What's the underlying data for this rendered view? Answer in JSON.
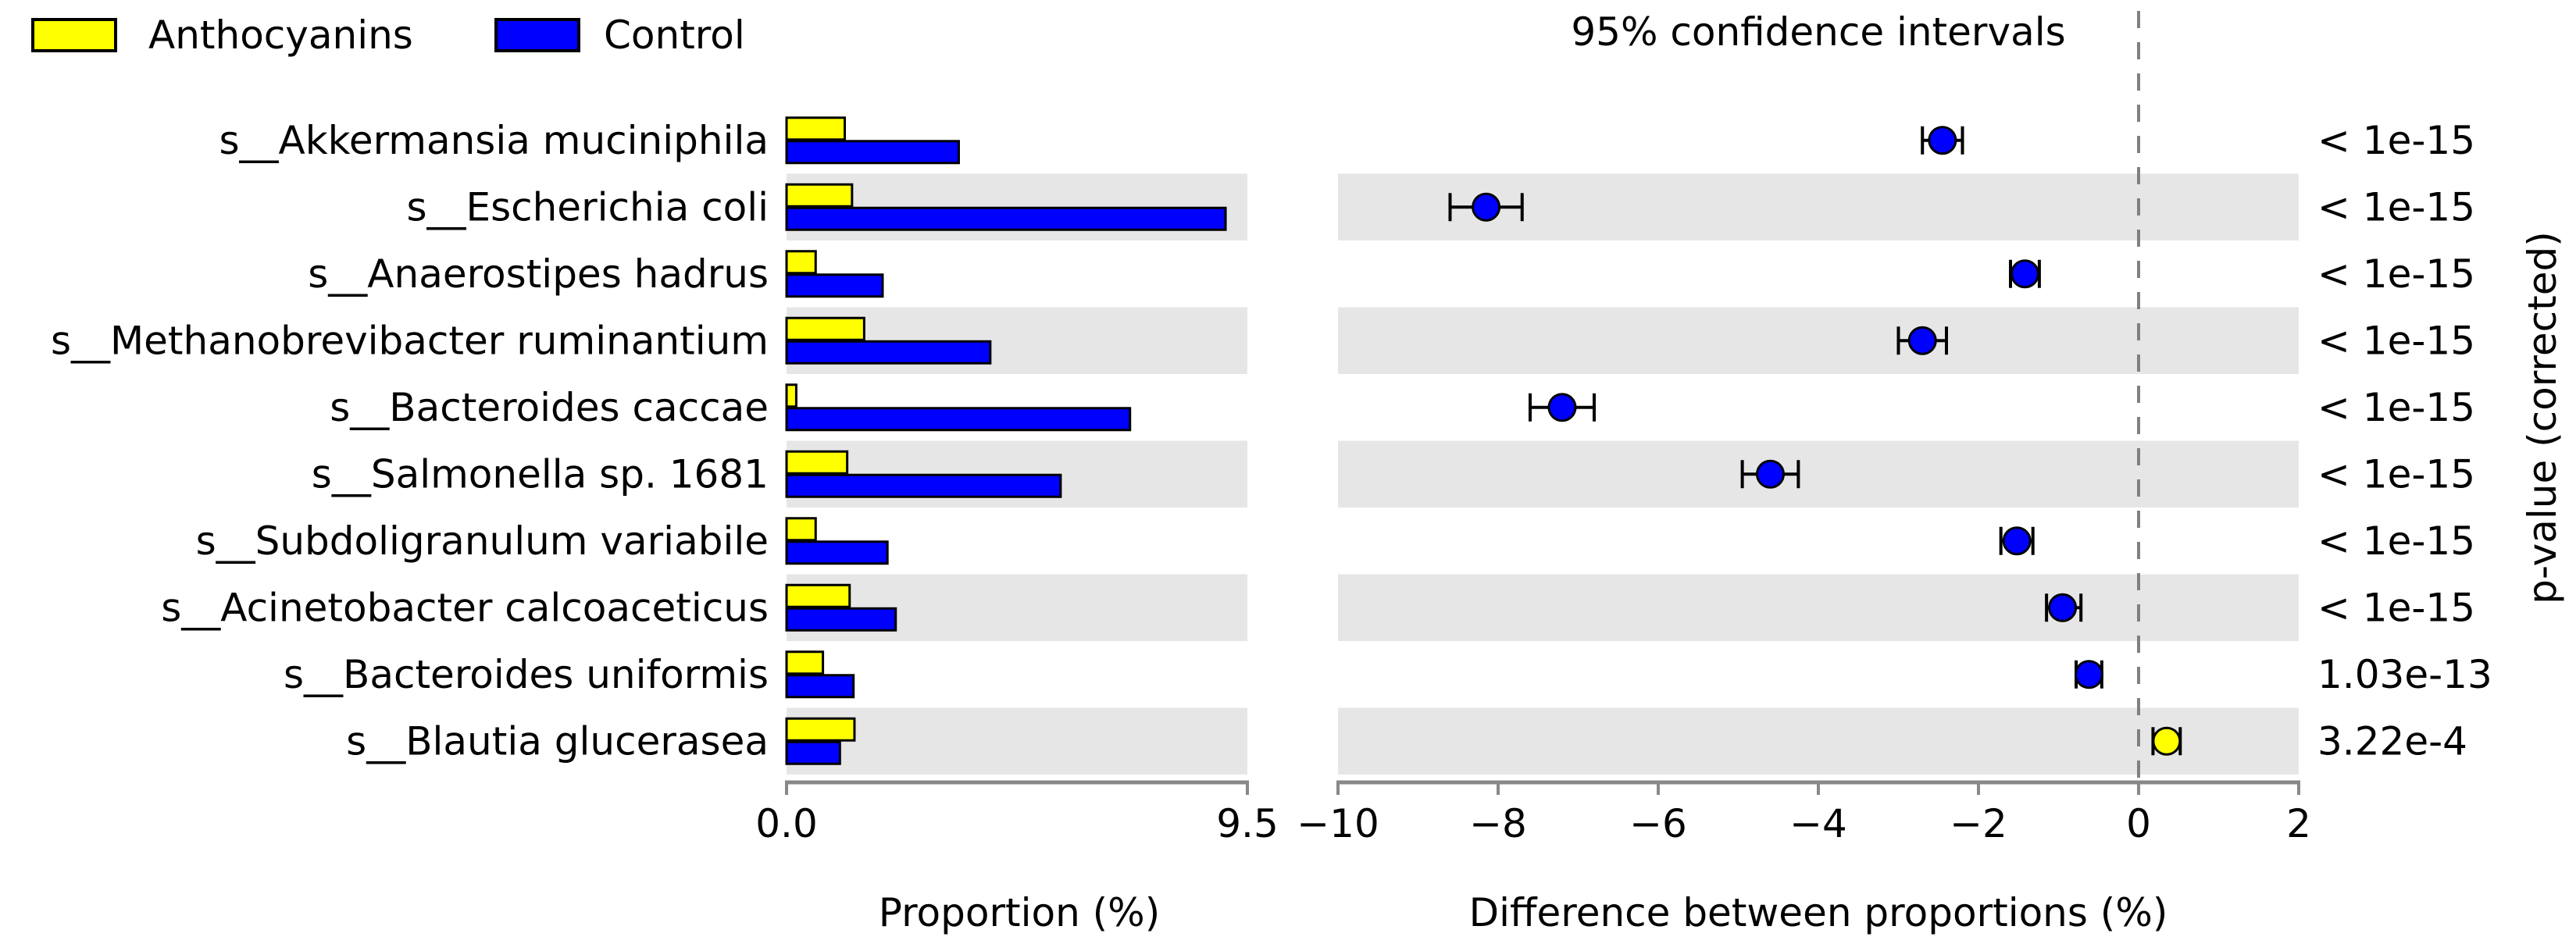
{
  "chart_data": {
    "type": "extended-error-bar",
    "legend": {
      "placement": "top-left",
      "entries": [
        {
          "name": "Anthocyanins",
          "color": "#ffff00"
        },
        {
          "name": "Control",
          "color": "#0000ff"
        }
      ]
    },
    "left_panel": {
      "type": "bar",
      "xlabel": "Proportion (%)",
      "xlim": [
        0,
        9.5
      ],
      "tick_labels": [
        "0.0",
        "9.5"
      ],
      "series": [
        {
          "name": "Anthocyanins",
          "color": "#ffff00",
          "values": [
            1.2,
            1.35,
            0.6,
            1.6,
            0.2,
            1.25,
            0.6,
            1.3,
            0.75,
            1.4
          ]
        },
        {
          "name": "Control",
          "color": "#0000ff",
          "values": [
            3.55,
            9.05,
            1.98,
            4.2,
            7.08,
            5.65,
            2.08,
            2.25,
            1.38,
            1.1
          ]
        }
      ]
    },
    "categories": [
      "s__Akkermansia muciniphila",
      "s__Escherichia coli",
      "s__Anaerostipes hadrus",
      "s__Methanobrevibacter ruminantium",
      "s__Bacteroides caccae",
      "s__Salmonella sp. 1681",
      "s__Subdoligranulum variabile",
      "s__Acinetobacter calcoaceticus",
      "s__Bacteroides uniformis",
      "s__Blautia glucerasea"
    ],
    "right_panel": {
      "type": "scatter-errorbar",
      "title": "95% confidence intervals",
      "xlabel": "Difference between proportions (%)",
      "xlim": [
        -10,
        2
      ],
      "ticks": [
        -10,
        -8,
        -6,
        -4,
        -2,
        0,
        2
      ],
      "tick_labels": [
        "−10",
        "−8",
        "−6",
        "−4",
        "−2",
        "0",
        "2"
      ],
      "reference_line": 0,
      "points": [
        {
          "diff": -2.45,
          "low": -2.7,
          "high": -2.2,
          "color": "#0000ff"
        },
        {
          "diff": -8.15,
          "low": -8.6,
          "high": -7.7,
          "color": "#0000ff"
        },
        {
          "diff": -1.42,
          "low": -1.6,
          "high": -1.24,
          "color": "#0000ff"
        },
        {
          "diff": -2.7,
          "low": -3.0,
          "high": -2.4,
          "color": "#0000ff"
        },
        {
          "diff": -7.2,
          "low": -7.6,
          "high": -6.8,
          "color": "#0000ff"
        },
        {
          "diff": -4.6,
          "low": -4.95,
          "high": -4.25,
          "color": "#0000ff"
        },
        {
          "diff": -1.52,
          "low": -1.72,
          "high": -1.32,
          "color": "#0000ff"
        },
        {
          "diff": -0.95,
          "low": -1.15,
          "high": -0.72,
          "color": "#0000ff"
        },
        {
          "diff": -0.62,
          "low": -0.78,
          "high": -0.46,
          "color": "#0000ff"
        },
        {
          "diff": 0.35,
          "low": 0.18,
          "high": 0.52,
          "color": "#ffff00"
        }
      ]
    },
    "p_values": {
      "label": "p-value (corrected)",
      "values": [
        "< 1e-15",
        "< 1e-15",
        "< 1e-15",
        "< 1e-15",
        "< 1e-15",
        "< 1e-15",
        "< 1e-15",
        "< 1e-15",
        "1.03e-13",
        "3.22e-4"
      ]
    }
  }
}
